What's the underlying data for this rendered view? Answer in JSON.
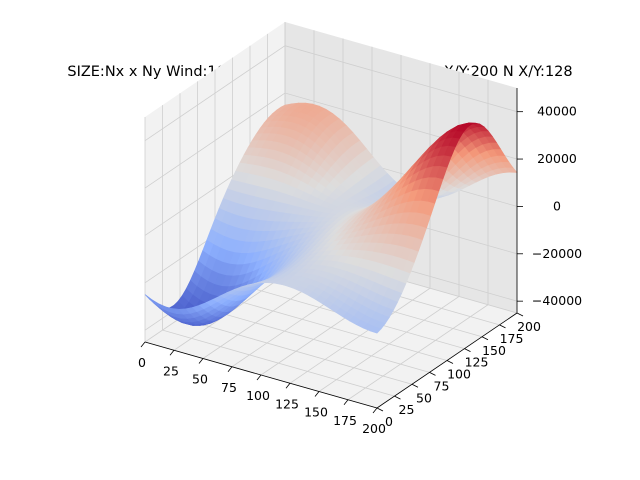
{
  "chart_data": {
    "type": "surface",
    "title": "SIZE:Nx x Ny Wind:100 Omega:0.84 Rand:1 WIDTH X/Y:200 N X/Y:128",
    "xlabel": "",
    "ylabel": "",
    "zlabel": "",
    "colormap": "coolwarm",
    "grid": true,
    "xlim": [
      0,
      200
    ],
    "ylim": [
      0,
      200
    ],
    "zlim": [
      -45000,
      50000
    ],
    "x_ticks": [
      0,
      25,
      50,
      75,
      100,
      125,
      150,
      175,
      200
    ],
    "y_ticks": [
      0,
      25,
      50,
      75,
      100,
      125,
      150,
      175,
      200
    ],
    "z_ticks": [
      -40000,
      -20000,
      0,
      20000,
      40000
    ],
    "x_tick_labels": [
      "0",
      "25",
      "50",
      "75",
      "100",
      "125",
      "150",
      "175",
      "200"
    ],
    "y_tick_labels": [
      "0",
      "25",
      "50",
      "75",
      "100",
      "125",
      "150",
      "175",
      "200"
    ],
    "z_tick_labels": [
      "−40000",
      "−20000",
      "0",
      "20000",
      "40000"
    ],
    "surface_features": [
      {
        "kind": "peak",
        "x": 200,
        "y": 135,
        "z": 48000
      },
      {
        "kind": "peak",
        "x": 35,
        "y": 190,
        "z": 22000
      },
      {
        "kind": "peak",
        "x": 185,
        "y": 40,
        "z": 12000
      },
      {
        "kind": "trough",
        "x": 20,
        "y": 40,
        "z": -42000
      },
      {
        "kind": "trough",
        "x": 110,
        "y": 185,
        "z": -15000
      },
      {
        "kind": "trough",
        "x": 195,
        "y": 10,
        "z": -22000
      }
    ]
  }
}
